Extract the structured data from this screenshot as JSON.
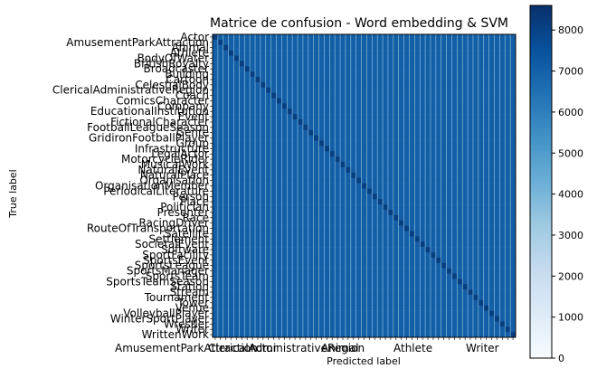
{
  "chart_data": {
    "type": "heatmap",
    "title": "Matrice de confusion - Word embedding & SVM",
    "xlabel": "Predicted label",
    "ylabel": "True label",
    "colormap": "Blues",
    "colors": {
      "low": "#f7fbff",
      "high": "#08306b"
    },
    "value_range": [
      0,
      8600
    ],
    "colorbar_ticks": [
      0,
      1000,
      2000,
      3000,
      4000,
      5000,
      6000,
      7000,
      8000
    ],
    "categories": [
      "Actor",
      "AmusementParkAttraction",
      "Animal",
      "Athlete",
      "BodyOfWater",
      "BritishRoyalty",
      "Broadcaster",
      "Building",
      "Cartoon",
      "CelestialBody",
      "ClericalAdministrativeRegion",
      "Coach",
      "ComicsCharacter",
      "Company",
      "EducationalInstitution",
      "Event",
      "FictionalCharacter",
      "FootballLeagueSeason",
      "Genre",
      "GridironFootballPlayer",
      "Group",
      "Infrastructure",
      "LegalActor",
      "MotorcycleRider",
      "MusicalWork",
      "NaturalEvent",
      "NaturalPlace",
      "Organisation",
      "OrganisationMember",
      "PeriodicalLiterature",
      "Person",
      "Place",
      "Politician",
      "Presenter",
      "Race",
      "RacingDriver",
      "RouteOfTransportation",
      "Satellite",
      "Settlement",
      "SocietalEvent",
      "Software",
      "SportFacility",
      "SportsEvent",
      "SportsLeague",
      "SportsManager",
      "SportsTeam",
      "SportsTeamSeason",
      "Station",
      "Stream",
      "Tournament",
      "Tower",
      "Venue",
      "VolleyballPlayer",
      "WinterSportPlayer",
      "Wrestler",
      "Writer",
      "WrittenWork"
    ],
    "y_tick_labels_visible": [
      "Actor",
      "AmusementParkAttraction",
      "Animal",
      "Athlete",
      "BodyOfWater",
      "BritishRoyalty",
      "Broadcaster",
      "Building",
      "Cartoon",
      "CelestialBody",
      "ClericalAdministrativeRegion",
      "Coach",
      "ComicsCharacter",
      "Company",
      "EducationalInstitution",
      "Event",
      "FictionalCharacter",
      "FootballLeagueSeason",
      "Genre",
      "GridironFootballPlayer",
      "Group",
      "Infrastructure",
      "LegalActor",
      "MotorcycleRider",
      "MusicalWork",
      "NaturalEvent",
      "NaturalPlace",
      "Organisation",
      "OrganisationMember",
      "PeriodicalLiterature",
      "Person",
      "Place",
      "Politician",
      "Presenter",
      "Race",
      "RacingDriver",
      "RouteOfTransportation",
      "Satellite",
      "Settlement",
      "SocietalEvent",
      "Software",
      "SportFacility",
      "SportsEvent",
      "SportsLeague",
      "SportsManager",
      "SportsTeam",
      "SportsTeamSeason",
      "Station",
      "Stream",
      "Tournament",
      "Tower",
      "Venue",
      "VolleyballPlayer",
      "WinterSportPlayer",
      "Wrestler",
      "Writer",
      "WrittenWork"
    ],
    "x_tick_labels_visible": [
      "AmusementParkAttraction",
      "ClericalAdministrativeRegion",
      "Actor",
      "Animal",
      "Athlete",
      "Writer"
    ],
    "grid": false
  }
}
